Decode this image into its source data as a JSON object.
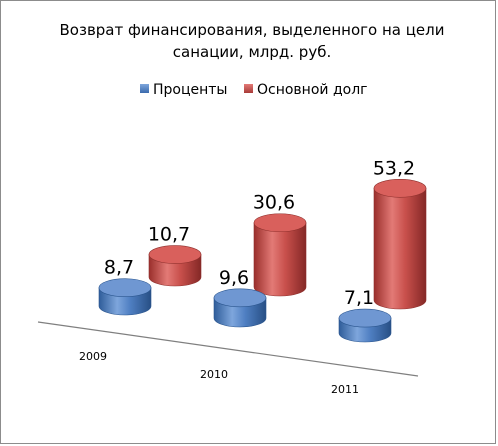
{
  "chart_data": {
    "type": "bar",
    "title_lines": [
      "Возврат финансирования, выделенного на цели",
      "санации, млрд. руб."
    ],
    "categories": [
      "2009",
      "2010",
      "2011"
    ],
    "series": [
      {
        "name": "Проценты",
        "values": [
          8.7,
          9.6,
          7.1
        ],
        "labels": [
          "8,7",
          "9,6",
          "7,1"
        ],
        "color": "#4a7ebb"
      },
      {
        "name": "Основной долг",
        "values": [
          10.7,
          30.6,
          53.2
        ],
        "labels": [
          "10,7",
          "30,6",
          "53,2"
        ],
        "color": "#c0504d"
      }
    ],
    "ylim": [
      0,
      55
    ],
    "legend_position": "top",
    "grid": false,
    "style": "3d-cylinder"
  }
}
